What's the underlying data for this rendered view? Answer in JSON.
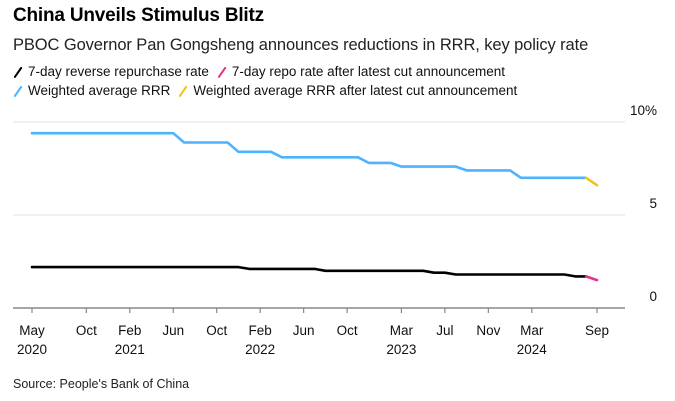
{
  "title": "China Unveils Stimulus Blitz",
  "subtitle": "PBOC Governor Pan Gongsheng announces reductions in RRR, key policy rate",
  "source": "Source: People's Bank of China",
  "colors": {
    "reverse_repo": "#000000",
    "repo_after_cut": "#e8308c",
    "rrr": "#4db3ff",
    "rrr_after_cut": "#f2c11b",
    "grid": "#e6e6e6",
    "axis": "#888888"
  },
  "chart_data": {
    "type": "line",
    "title": "China Unveils Stimulus Blitz",
    "subtitle": "PBOC Governor Pan Gongsheng announces reductions in RRR, key policy rate",
    "xlabel": "",
    "ylabel": "",
    "y_unit": "%",
    "ylim": [
      0,
      10
    ],
    "yticks": [
      {
        "value": 10,
        "label": "10%"
      },
      {
        "value": 5,
        "label": "5"
      },
      {
        "value": 0,
        "label": "0"
      }
    ],
    "y_axis_side": "right",
    "grid": true,
    "legend_position": "top-left",
    "x_start": "2020-05",
    "x_end": "2024-09",
    "xticks": [
      {
        "month": "2020-05",
        "label": "May",
        "year": "2020"
      },
      {
        "month": "2020-10",
        "label": "Oct",
        "year": ""
      },
      {
        "month": "2021-02",
        "label": "Feb",
        "year": "2021"
      },
      {
        "month": "2021-06",
        "label": "Jun",
        "year": ""
      },
      {
        "month": "2021-10",
        "label": "Oct",
        "year": ""
      },
      {
        "month": "2022-02",
        "label": "Feb",
        "year": "2022"
      },
      {
        "month": "2022-06",
        "label": "Jun",
        "year": ""
      },
      {
        "month": "2022-10",
        "label": "Oct",
        "year": ""
      },
      {
        "month": "2023-03",
        "label": "Mar",
        "year": "2023"
      },
      {
        "month": "2023-07",
        "label": "Jul",
        "year": ""
      },
      {
        "month": "2023-11",
        "label": "Nov",
        "year": ""
      },
      {
        "month": "2024-03",
        "label": "Mar",
        "year": "2024"
      },
      {
        "month": "2024-09",
        "label": "Sep",
        "year": ""
      }
    ],
    "series": [
      {
        "name": "7-day reverse repurchase rate",
        "color_key": "reverse_repo",
        "points": [
          [
            "2020-05",
            2.2
          ],
          [
            "2021-12",
            2.2
          ],
          [
            "2022-01",
            2.1
          ],
          [
            "2022-07",
            2.1
          ],
          [
            "2022-08",
            2.0
          ],
          [
            "2023-05",
            2.0
          ],
          [
            "2023-06",
            1.9
          ],
          [
            "2023-07",
            1.9
          ],
          [
            "2023-08",
            1.8
          ],
          [
            "2024-06",
            1.8
          ],
          [
            "2024-07",
            1.7
          ],
          [
            "2024-08",
            1.7
          ]
        ]
      },
      {
        "name": "7-day repo rate after latest cut announcement",
        "color_key": "repo_after_cut",
        "points": [
          [
            "2024-08",
            1.7
          ],
          [
            "2024-09",
            1.5
          ]
        ]
      },
      {
        "name": "Weighted average RRR",
        "color_key": "rrr",
        "points": [
          [
            "2020-05",
            9.4
          ],
          [
            "2021-06",
            9.4
          ],
          [
            "2021-07",
            8.9
          ],
          [
            "2021-11",
            8.9
          ],
          [
            "2021-12",
            8.4
          ],
          [
            "2022-03",
            8.4
          ],
          [
            "2022-04",
            8.1
          ],
          [
            "2022-11",
            8.1
          ],
          [
            "2022-12",
            7.8
          ],
          [
            "2023-02",
            7.8
          ],
          [
            "2023-03",
            7.6
          ],
          [
            "2023-08",
            7.6
          ],
          [
            "2023-09",
            7.4
          ],
          [
            "2024-01",
            7.4
          ],
          [
            "2024-02",
            7.0
          ],
          [
            "2024-08",
            7.0
          ]
        ]
      },
      {
        "name": "Weighted average RRR after latest cut announcement",
        "color_key": "rrr_after_cut",
        "points": [
          [
            "2024-08",
            7.0
          ],
          [
            "2024-09",
            6.6
          ]
        ]
      }
    ]
  }
}
